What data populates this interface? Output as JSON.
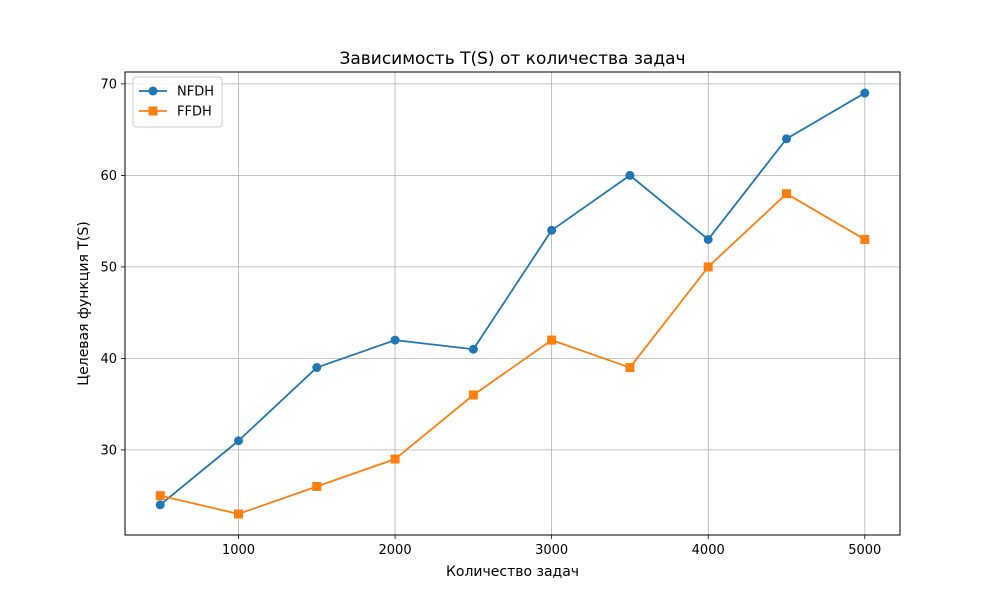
{
  "chart_data": {
    "type": "line",
    "title": "Зависимость T(S) от количества задач",
    "xlabel": "Количество задач",
    "ylabel": "Целевая функция T(S)",
    "x": [
      500,
      1000,
      1500,
      2000,
      2500,
      3000,
      3500,
      4000,
      4500,
      5000
    ],
    "xlim": [
      275,
      5225
    ],
    "ylim": [
      20.7,
      71.3
    ],
    "xticks": [
      1000,
      2000,
      3000,
      4000,
      5000
    ],
    "yticks": [
      30,
      40,
      50,
      60,
      70
    ],
    "xtick_labels": [
      "1000",
      "2000",
      "3000",
      "4000",
      "5000"
    ],
    "ytick_labels": [
      "30",
      "40",
      "50",
      "60",
      "70"
    ],
    "grid": true,
    "legend_position": "top-left",
    "series": [
      {
        "name": "NFDH",
        "color": "#1f77b4",
        "marker": "circle",
        "values": [
          24,
          31,
          39,
          42,
          41,
          54,
          60,
          53,
          64,
          69
        ]
      },
      {
        "name": "FFDH",
        "color": "#ff7f0e",
        "marker": "square",
        "values": [
          25,
          23,
          26,
          29,
          36,
          42,
          39,
          50,
          58,
          53
        ]
      }
    ]
  }
}
